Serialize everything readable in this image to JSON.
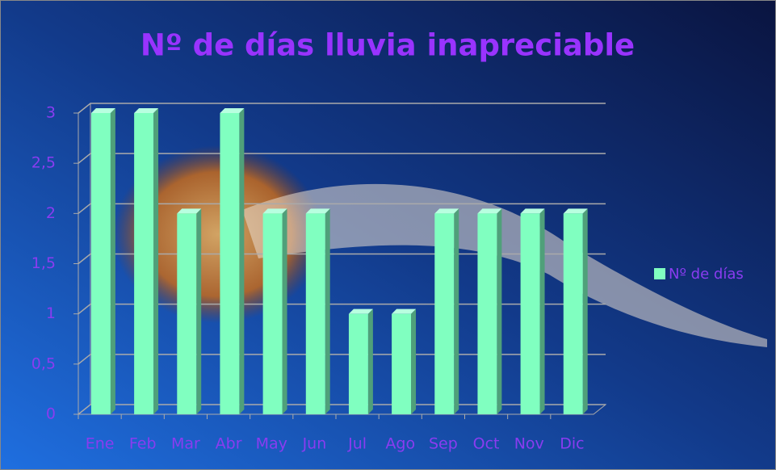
{
  "chart_data": {
    "type": "bar",
    "title": "Nº de días lluvia inapreciable",
    "categories": [
      "Ene",
      "Feb",
      "Mar",
      "Abr",
      "May",
      "Jun",
      "Jul",
      "Ago",
      "Sep",
      "Oct",
      "Nov",
      "Dic"
    ],
    "series": [
      {
        "name": "Nº de días",
        "color": "#80ffc0",
        "values": [
          3,
          3,
          2,
          3,
          2,
          2,
          1,
          1,
          2,
          2,
          2,
          2
        ]
      }
    ],
    "ylim": [
      0,
      3
    ],
    "yticks": [
      0,
      {
        "value": 0.5,
        "label": "0,5"
      },
      1,
      {
        "value": 1.5,
        "label": "1,5"
      },
      2,
      {
        "value": 2.5,
        "label": "2,5"
      },
      3
    ],
    "grid": true,
    "legend": "right"
  }
}
